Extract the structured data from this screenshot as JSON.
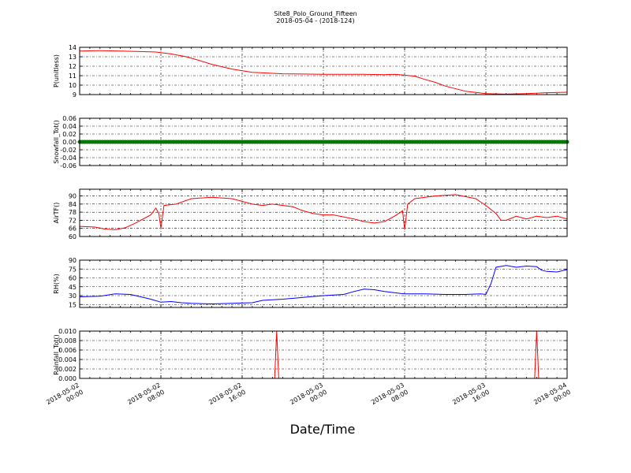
{
  "figure": {
    "title": "Site8_Polo_Ground_Fifteen",
    "subtitle": "2018-05-04 - (2018-124)",
    "xlabel": "Date/Time",
    "background": "#ffffff"
  },
  "x_axis": {
    "start": "2018-05-02 00:00",
    "end": "2018-05-04 00:00",
    "ticks": [
      {
        "line1": "2018-05-02",
        "line2": "00:00",
        "hour": 0
      },
      {
        "line1": "2018-05-02",
        "line2": "08:00",
        "hour": 8
      },
      {
        "line1": "2018-05-02",
        "line2": "16:00",
        "hour": 16
      },
      {
        "line1": "2018-05-03",
        "line2": "00:00",
        "hour": 24
      },
      {
        "line1": "2018-05-03",
        "line2": "08:00",
        "hour": 32
      },
      {
        "line1": "2018-05-03",
        "line2": "16:00",
        "hour": 40
      },
      {
        "line1": "2018-05-04",
        "line2": "00:00",
        "hour": 48
      }
    ]
  },
  "chart_data": [
    {
      "type": "line",
      "ylabel": "P(unitless)",
      "ylim": [
        9,
        14
      ],
      "yticks": [
        "9",
        "10",
        "11",
        "12",
        "13",
        "14"
      ],
      "ytick_values": [
        9,
        10,
        11,
        12,
        13,
        14
      ],
      "grid": true,
      "color": "#ff0000",
      "hours": [
        0,
        2,
        4,
        6,
        7.5,
        9,
        10.5,
        11.5,
        13,
        15,
        17,
        20,
        24,
        28,
        30,
        31,
        32,
        32.5,
        33,
        34,
        35,
        36,
        38,
        40,
        42,
        44,
        46,
        48
      ],
      "values": [
        13.6,
        13.65,
        13.6,
        13.55,
        13.5,
        13.3,
        13.0,
        12.7,
        12.2,
        11.7,
        11.35,
        11.2,
        11.15,
        11.15,
        11.1,
        11.15,
        11.05,
        11.0,
        10.95,
        10.6,
        10.3,
        9.9,
        9.35,
        9.1,
        9.05,
        9.1,
        9.2,
        9.25
      ]
    },
    {
      "type": "line",
      "ylabel": "Snowfall_Tot()",
      "ylim": [
        -0.06,
        0.06
      ],
      "yticks": [
        "-0.06",
        "-0.04",
        "-0.02",
        "0.00",
        "0.02",
        "0.04",
        "0.06"
      ],
      "ytick_values": [
        -0.06,
        -0.04,
        -0.02,
        0.0,
        0.02,
        0.04,
        0.06
      ],
      "grid": true,
      "color": "#008000",
      "marker": "circle",
      "hours": [
        0,
        48
      ],
      "values": [
        0.0,
        0.0
      ]
    },
    {
      "type": "line",
      "ylabel": "AirTF()",
      "ylim": [
        60,
        95
      ],
      "yticks": [
        "60",
        "66",
        "72",
        "78",
        "84",
        "90"
      ],
      "ytick_values": [
        60,
        66,
        72,
        78,
        84,
        90
      ],
      "grid": true,
      "color": "#ff0000",
      "hours": [
        0,
        1.5,
        2.5,
        3.5,
        4.5,
        5.5,
        7,
        7.5,
        7.8,
        8.0,
        8.3,
        9.5,
        11,
        13,
        15,
        17,
        18,
        19,
        21,
        22,
        23,
        24,
        25,
        27,
        28,
        29,
        30,
        31,
        31.8,
        32.0,
        32.3,
        33,
        35,
        37,
        39,
        40,
        41,
        41.5,
        42,
        43,
        44,
        45,
        46,
        47,
        48
      ],
      "values": [
        67.5,
        67,
        65.5,
        65,
        66.5,
        70,
        76,
        81,
        77,
        66,
        83,
        84,
        88,
        89,
        88,
        84,
        83,
        84,
        82,
        79,
        77,
        76,
        76,
        73,
        71,
        70,
        71,
        75,
        79,
        65,
        84,
        88,
        90,
        91,
        88,
        83,
        77,
        72,
        72,
        75,
        73,
        75,
        74,
        75,
        73
      ]
    },
    {
      "type": "line",
      "ylabel": "RH(%)",
      "ylim": [
        10,
        90
      ],
      "yticks": [
        "15",
        "30",
        "45",
        "60",
        "75",
        "90"
      ],
      "ytick_values": [
        15,
        30,
        45,
        60,
        75,
        90
      ],
      "grid": true,
      "color": "#0000ff",
      "hours": [
        0,
        2,
        3.5,
        5,
        6,
        7,
        8,
        9,
        10,
        11,
        13,
        15,
        17,
        18,
        19,
        20,
        22,
        24,
        26,
        27,
        28,
        29,
        30,
        32,
        34,
        36,
        38,
        39.5,
        40,
        40.5,
        41,
        42,
        43,
        44,
        45,
        45.5,
        46,
        47,
        48
      ],
      "values": [
        28,
        29,
        33,
        32,
        28,
        24,
        19,
        20,
        18,
        17,
        16,
        17,
        18,
        22,
        23,
        24,
        27,
        30,
        32,
        37,
        41,
        40,
        37,
        33,
        33,
        32,
        32,
        33,
        32,
        50,
        78,
        81,
        78,
        80,
        79,
        73,
        71,
        70,
        74
      ]
    },
    {
      "type": "line",
      "ylabel": "Rainfall_Tot()",
      "ylim": [
        0,
        0.01
      ],
      "yticks": [
        "0.000",
        "0.002",
        "0.004",
        "0.006",
        "0.008",
        "0.010"
      ],
      "ytick_values": [
        0,
        0.002,
        0.004,
        0.006,
        0.008,
        0.01
      ],
      "grid": true,
      "color": "#ff0000",
      "hours": [
        0,
        19.2,
        19.4,
        19.6,
        44.8,
        45.0,
        45.2,
        48
      ],
      "values": [
        0,
        0,
        0.01,
        0,
        0,
        0.01,
        0,
        0
      ]
    }
  ]
}
